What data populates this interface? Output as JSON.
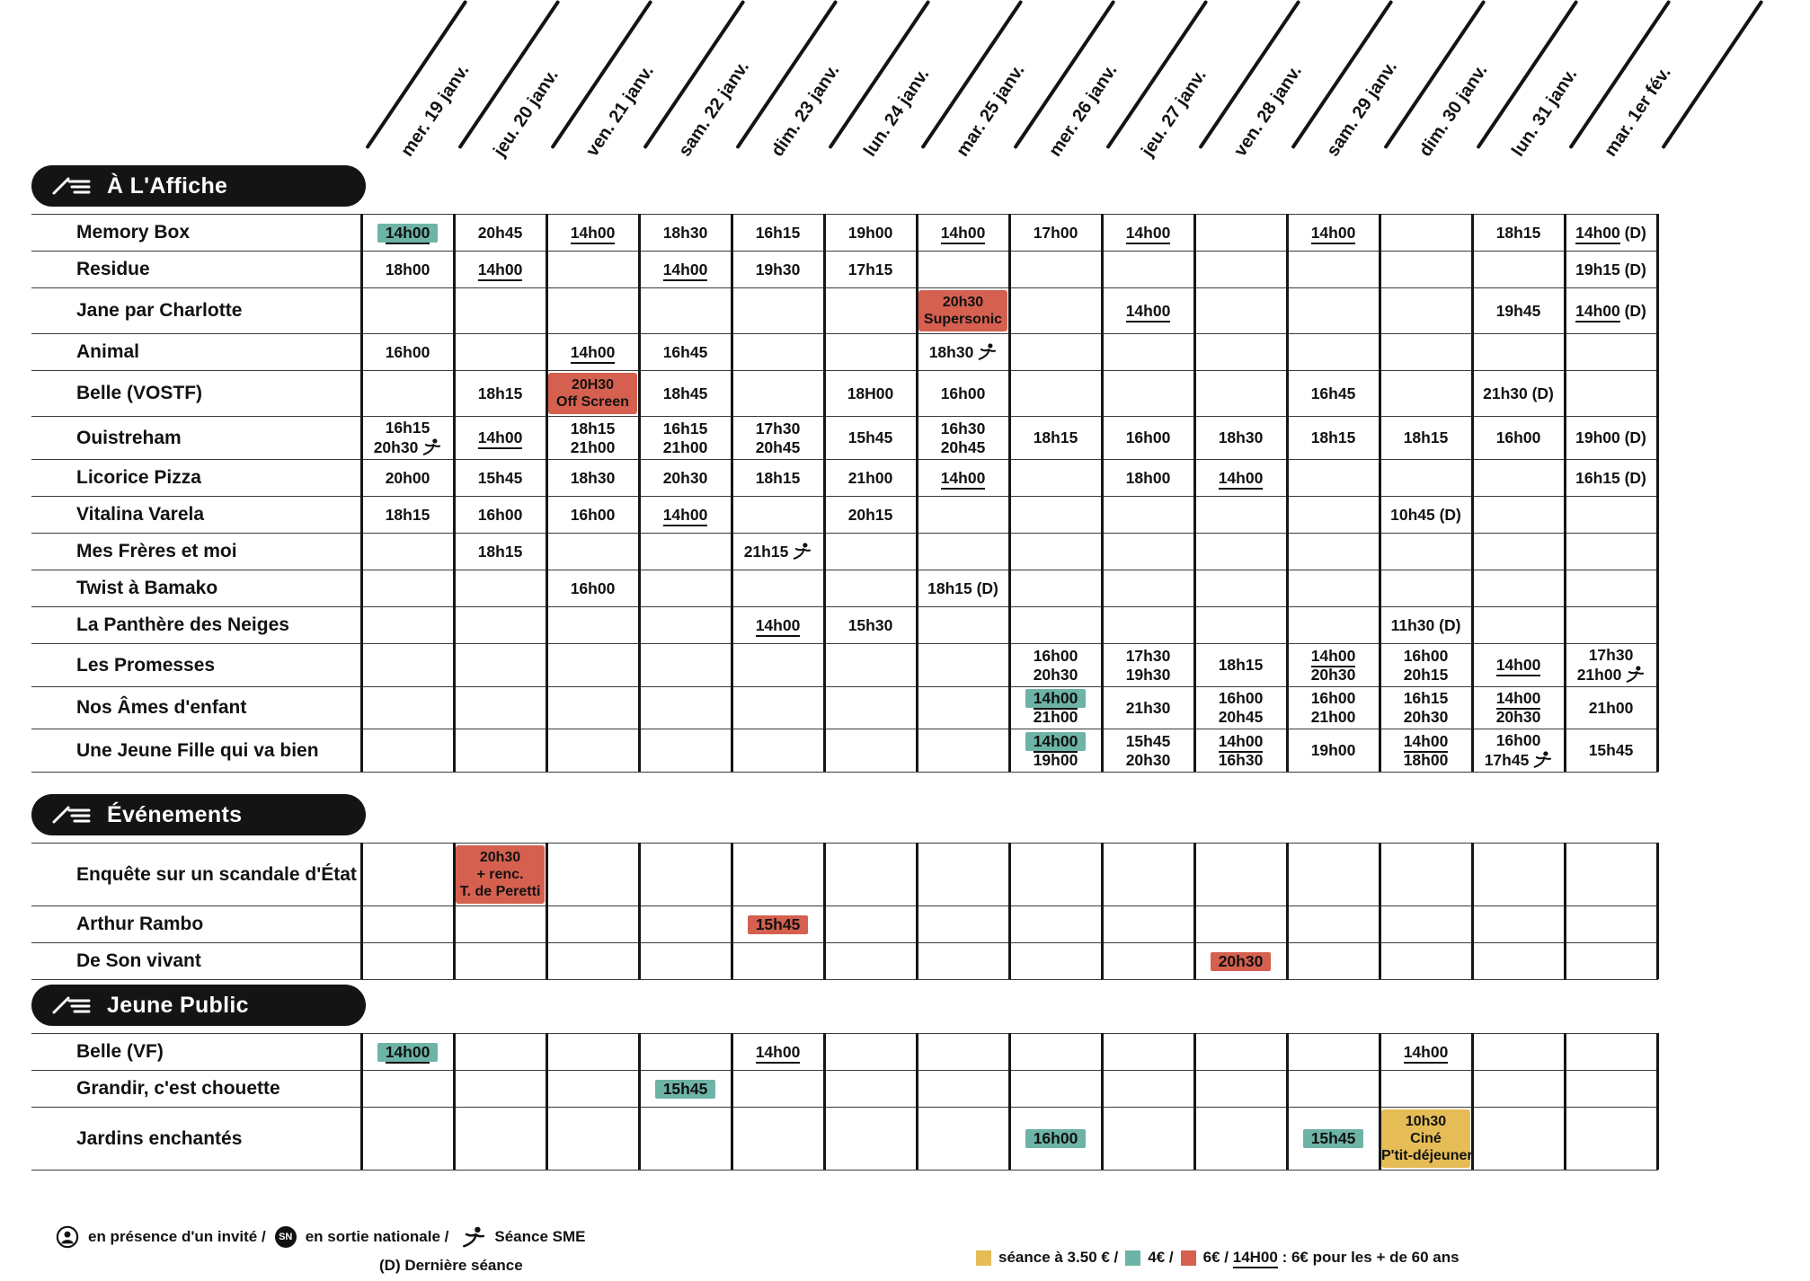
{
  "colors": {
    "teal": "#6db4a6",
    "red": "#d5604f",
    "yellow": "#e5bc56",
    "black": "#141414"
  },
  "dates": [
    "mer. 19 janv.",
    "jeu. 20 janv.",
    "ven. 21 janv.",
    "sam. 22 janv.",
    "dim. 23 janv.",
    "lun. 24 janv.",
    "mar. 25 janv.",
    "mer. 26 janv.",
    "jeu. 27 janv.",
    "ven. 28 janv.",
    "sam. 29 janv.",
    "dim. 30 janv.",
    "lun. 31 janv.",
    "mar. 1er fév."
  ],
  "sections": [
    {
      "title": "À L'Affiche",
      "rows": [
        {
          "title": "Memory Box",
          "cells": [
            {
              "col": 0,
              "bg": "teal",
              "lines": [
                {
                  "t": "14h00",
                  "u": true
                }
              ]
            },
            {
              "col": 1,
              "lines": [
                "20h45"
              ]
            },
            {
              "col": 2,
              "lines": [
                {
                  "t": "14h00",
                  "u": true
                }
              ]
            },
            {
              "col": 3,
              "lines": [
                "18h30"
              ]
            },
            {
              "col": 4,
              "lines": [
                "16h15"
              ]
            },
            {
              "col": 5,
              "lines": [
                "19h00"
              ]
            },
            {
              "col": 6,
              "lines": [
                {
                  "t": "14h00",
                  "u": true
                }
              ]
            },
            {
              "col": 7,
              "lines": [
                "17h00"
              ]
            },
            {
              "col": 8,
              "lines": [
                {
                  "t": "14h00",
                  "u": true
                }
              ]
            },
            {
              "col": 10,
              "lines": [
                {
                  "t": "14h00",
                  "u": true
                }
              ]
            },
            {
              "col": 12,
              "lines": [
                "18h15"
              ]
            },
            {
              "col": 13,
              "lines": [
                {
                  "t": "14h00",
                  "u": true,
                  "d": " (D)"
                }
              ]
            }
          ]
        },
        {
          "title": "Residue",
          "cells": [
            {
              "col": 0,
              "lines": [
                "18h00"
              ]
            },
            {
              "col": 1,
              "lines": [
                {
                  "t": "14h00",
                  "u": true
                }
              ]
            },
            {
              "col": 3,
              "lines": [
                {
                  "t": "14h00",
                  "u": true
                }
              ]
            },
            {
              "col": 4,
              "lines": [
                "19h30"
              ]
            },
            {
              "col": 5,
              "lines": [
                "17h15"
              ]
            },
            {
              "col": 13,
              "lines": [
                "19h15 (D)"
              ]
            }
          ]
        },
        {
          "title": "Jane par Charlotte",
          "cells": [
            {
              "col": 6,
              "bg": "red",
              "lines": [
                "20h30",
                "Supersonic"
              ]
            },
            {
              "col": 8,
              "lines": [
                {
                  "t": "14h00",
                  "u": true
                }
              ]
            },
            {
              "col": 12,
              "lines": [
                "19h45"
              ]
            },
            {
              "col": 13,
              "lines": [
                {
                  "t": "14h00",
                  "u": true,
                  "d": " (D)"
                }
              ]
            }
          ]
        },
        {
          "title": "Animal",
          "cells": [
            {
              "col": 0,
              "lines": [
                "16h00"
              ]
            },
            {
              "col": 2,
              "lines": [
                {
                  "t": "14h00",
                  "u": true
                }
              ]
            },
            {
              "col": 3,
              "lines": [
                "16h45"
              ]
            },
            {
              "col": 6,
              "lines": [
                {
                  "t": "18h30",
                  "sme": true
                }
              ]
            }
          ]
        },
        {
          "title": "Belle (VOSTF)",
          "cells": [
            {
              "col": 1,
              "lines": [
                "18h15"
              ]
            },
            {
              "col": 2,
              "bg": "red",
              "lines": [
                "20H30",
                "Off Screen"
              ]
            },
            {
              "col": 3,
              "lines": [
                "18h45"
              ]
            },
            {
              "col": 5,
              "lines": [
                "18H00"
              ]
            },
            {
              "col": 6,
              "lines": [
                "16h00"
              ]
            },
            {
              "col": 10,
              "lines": [
                "16h45"
              ]
            },
            {
              "col": 12,
              "lines": [
                "21h30 (D)"
              ]
            }
          ]
        },
        {
          "title": "Ouistreham",
          "cells": [
            {
              "col": 0,
              "lines": [
                "16h15",
                {
                  "t": "20h30",
                  "sme": true
                }
              ]
            },
            {
              "col": 1,
              "lines": [
                {
                  "t": "14h00",
                  "u": true
                }
              ]
            },
            {
              "col": 2,
              "lines": [
                "18h15",
                "21h00"
              ]
            },
            {
              "col": 3,
              "lines": [
                "16h15",
                "21h00"
              ]
            },
            {
              "col": 4,
              "lines": [
                "17h30",
                "20h45"
              ]
            },
            {
              "col": 5,
              "lines": [
                "15h45"
              ]
            },
            {
              "col": 6,
              "lines": [
                "16h30",
                "20h45"
              ]
            },
            {
              "col": 7,
              "lines": [
                "18h15"
              ]
            },
            {
              "col": 8,
              "lines": [
                "16h00"
              ]
            },
            {
              "col": 9,
              "lines": [
                "18h30"
              ]
            },
            {
              "col": 10,
              "lines": [
                "18h15"
              ]
            },
            {
              "col": 11,
              "lines": [
                "18h15"
              ]
            },
            {
              "col": 12,
              "lines": [
                "16h00"
              ]
            },
            {
              "col": 13,
              "lines": [
                "19h00 (D)"
              ]
            }
          ]
        },
        {
          "title": "Licorice Pizza",
          "cells": [
            {
              "col": 0,
              "lines": [
                "20h00"
              ]
            },
            {
              "col": 1,
              "lines": [
                "15h45"
              ]
            },
            {
              "col": 2,
              "lines": [
                "18h30"
              ]
            },
            {
              "col": 3,
              "lines": [
                "20h30"
              ]
            },
            {
              "col": 4,
              "lines": [
                "18h15"
              ]
            },
            {
              "col": 5,
              "lines": [
                "21h00"
              ]
            },
            {
              "col": 6,
              "lines": [
                {
                  "t": "14h00",
                  "u": true
                }
              ]
            },
            {
              "col": 8,
              "lines": [
                "18h00"
              ]
            },
            {
              "col": 9,
              "lines": [
                {
                  "t": "14h00",
                  "u": true
                }
              ]
            },
            {
              "col": 13,
              "lines": [
                "16h15 (D)"
              ]
            }
          ]
        },
        {
          "title": "Vitalina Varela",
          "cells": [
            {
              "col": 0,
              "lines": [
                "18h15"
              ]
            },
            {
              "col": 1,
              "lines": [
                "16h00"
              ]
            },
            {
              "col": 2,
              "lines": [
                "16h00"
              ]
            },
            {
              "col": 3,
              "lines": [
                {
                  "t": "14h00",
                  "u": true
                }
              ]
            },
            {
              "col": 5,
              "lines": [
                "20h15"
              ]
            },
            {
              "col": 11,
              "lines": [
                "10h45 (D)"
              ]
            }
          ]
        },
        {
          "title": "Mes Frères et moi",
          "cells": [
            {
              "col": 1,
              "lines": [
                "18h15"
              ]
            },
            {
              "col": 4,
              "lines": [
                {
                  "t": "21h15",
                  "sme": true
                }
              ]
            }
          ]
        },
        {
          "title": "Twist à Bamako",
          "cells": [
            {
              "col": 2,
              "lines": [
                "16h00"
              ]
            },
            {
              "col": 6,
              "lines": [
                "18h15 (D)"
              ]
            }
          ]
        },
        {
          "title": "La Panthère des Neiges",
          "cells": [
            {
              "col": 4,
              "lines": [
                {
                  "t": "14h00",
                  "u": true
                }
              ]
            },
            {
              "col": 5,
              "lines": [
                "15h30"
              ]
            },
            {
              "col": 11,
              "lines": [
                "11h30 (D)"
              ]
            }
          ]
        },
        {
          "title": "Les Promesses",
          "cells": [
            {
              "col": 7,
              "lines": [
                "16h00",
                "20h30"
              ]
            },
            {
              "col": 8,
              "lines": [
                "17h30",
                "19h30"
              ]
            },
            {
              "col": 9,
              "lines": [
                "18h15"
              ]
            },
            {
              "col": 10,
              "lines": [
                {
                  "t": "14h00",
                  "u": true
                },
                "20h30"
              ]
            },
            {
              "col": 11,
              "lines": [
                "16h00",
                "20h15"
              ]
            },
            {
              "col": 12,
              "lines": [
                {
                  "t": "14h00",
                  "u": true
                }
              ]
            },
            {
              "col": 13,
              "lines": [
                "17h30",
                {
                  "t": "21h00",
                  "sme": true
                }
              ]
            }
          ]
        },
        {
          "title": "Nos Âmes d'enfant",
          "cells": [
            {
              "col": 7,
              "lines": [
                {
                  "t": "14h00",
                  "u": true,
                  "bg": "teal"
                },
                "21h00"
              ]
            },
            {
              "col": 8,
              "lines": [
                "21h30"
              ]
            },
            {
              "col": 9,
              "lines": [
                "16h00",
                "20h45"
              ]
            },
            {
              "col": 10,
              "lines": [
                "16h00",
                "21h00"
              ]
            },
            {
              "col": 11,
              "lines": [
                "16h15",
                "20h30"
              ]
            },
            {
              "col": 12,
              "lines": [
                {
                  "t": "14h00",
                  "u": true
                },
                "20h30"
              ]
            },
            {
              "col": 13,
              "lines": [
                "21h00"
              ]
            }
          ]
        },
        {
          "title": "Une Jeune Fille qui va bien",
          "cells": [
            {
              "col": 7,
              "lines": [
                {
                  "t": "14h00",
                  "u": true,
                  "bg": "teal"
                },
                "19h00"
              ]
            },
            {
              "col": 8,
              "lines": [
                "15h45",
                "20h30"
              ]
            },
            {
              "col": 9,
              "lines": [
                {
                  "t": "14h00",
                  "u": true
                },
                "16h30"
              ]
            },
            {
              "col": 10,
              "lines": [
                "19h00"
              ]
            },
            {
              "col": 11,
              "lines": [
                {
                  "t": "14h00",
                  "u": true
                },
                "18h00"
              ]
            },
            {
              "col": 12,
              "lines": [
                "16h00",
                {
                  "t": "17h45",
                  "sme": true
                }
              ]
            },
            {
              "col": 13,
              "lines": [
                "15h45"
              ]
            }
          ]
        }
      ]
    },
    {
      "title": "Événements",
      "rows": [
        {
          "title": "Enquête sur un scandale d'État",
          "cells": [
            {
              "col": 1,
              "bg": "red",
              "lines": [
                "20h30",
                "+ renc.",
                "T. de Peretti"
              ]
            }
          ]
        },
        {
          "title": "Arthur Rambo",
          "cells": [
            {
              "col": 4,
              "bg": "red",
              "lines": [
                "15h45"
              ]
            }
          ]
        },
        {
          "title": "De Son vivant",
          "cells": [
            {
              "col": 9,
              "bg": "red",
              "lines": [
                "20h30"
              ]
            }
          ]
        }
      ]
    },
    {
      "title": "Jeune Public",
      "rows": [
        {
          "title": "Belle (VF)",
          "cells": [
            {
              "col": 0,
              "bg": "teal",
              "lines": [
                {
                  "t": "14h00",
                  "u": true
                }
              ]
            },
            {
              "col": 4,
              "lines": [
                {
                  "t": "14h00",
                  "u": true
                }
              ]
            },
            {
              "col": 11,
              "lines": [
                {
                  "t": "14h00",
                  "u": true
                }
              ]
            }
          ]
        },
        {
          "title": "Grandir, c'est chouette",
          "cells": [
            {
              "col": 3,
              "bg": "teal",
              "lines": [
                "15h45"
              ]
            }
          ]
        },
        {
          "title": "Jardins enchantés",
          "cells": [
            {
              "col": 7,
              "bg": "teal",
              "lines": [
                "16h00"
              ]
            },
            {
              "col": 10,
              "bg": "teal",
              "lines": [
                "15h45"
              ]
            },
            {
              "col": 11,
              "bg": "yellow",
              "lines": [
                "10h30",
                "Ciné",
                "P'tit-déjeuner"
              ]
            }
          ]
        }
      ]
    }
  ],
  "legend": {
    "guest": "en présence d'un invité /",
    "sn": "SN",
    "national": "en sortie nationale /",
    "sme": "Séance SME",
    "last": "(D) Dernière séance",
    "prices": {
      "yellow": "séance à 3.50 € /",
      "teal": "4€ /",
      "red_pre": "6€ /",
      "red_time": "14H00",
      "red_post": ": 6€ pour les + de 60 ans"
    }
  }
}
